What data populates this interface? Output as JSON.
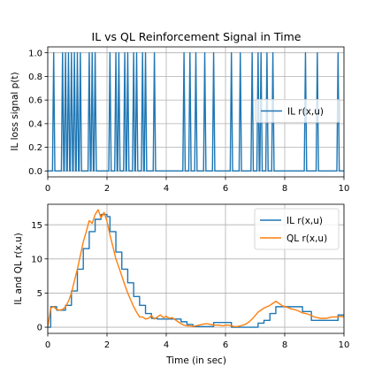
{
  "chart_data": [
    {
      "type": "line",
      "title": "IL vs QL Reinforcement Signal in Time",
      "xlabel": "",
      "ylabel": "IL loss signal p(t)",
      "xlim": [
        0,
        10
      ],
      "ylim": [
        -0.05,
        1.05
      ],
      "x_ticks": [
        0,
        2,
        4,
        6,
        8,
        10
      ],
      "y_ticks": [
        0.0,
        0.2,
        0.4,
        0.6,
        0.8,
        1.0
      ],
      "x_tick_labels": [
        "0",
        "2",
        "4",
        "6",
        "8",
        "10"
      ],
      "y_tick_labels": [
        "0.0",
        "0.2",
        "0.4",
        "0.6",
        "0.8",
        "1.0"
      ],
      "grid": true,
      "legend_position": "center-right",
      "spike_width": 0.08,
      "series": [
        {
          "name": "IL r(x,u)",
          "color": "#1f77b4",
          "spike_times": [
            0.2,
            0.5,
            0.6,
            0.7,
            0.8,
            0.9,
            1.0,
            1.1,
            1.4,
            1.5,
            1.6,
            2.1,
            2.3,
            2.4,
            2.6,
            2.7,
            2.9,
            3.0,
            3.2,
            3.3,
            3.6,
            4.6,
            4.8,
            5.0,
            5.3,
            5.6,
            6.2,
            6.5,
            6.9,
            7.1,
            7.2,
            7.4,
            7.6,
            8.7,
            9.1,
            9.8
          ]
        }
      ]
    },
    {
      "type": "line",
      "title": "",
      "xlabel": "Time (in sec)",
      "ylabel": "IL and QL r(x,u)",
      "xlim": [
        0,
        10
      ],
      "ylim": [
        -0.9,
        18
      ],
      "x_ticks": [
        0,
        2,
        4,
        6,
        8,
        10
      ],
      "y_ticks": [
        0,
        5,
        10,
        15
      ],
      "x_tick_labels": [
        "0",
        "2",
        "4",
        "6",
        "8",
        "10"
      ],
      "y_tick_labels": [
        "0",
        "5",
        "10",
        "15"
      ],
      "grid": true,
      "legend_position": "top-right",
      "series": [
        {
          "name": "IL r(x,u)",
          "color": "#1f77b4",
          "step": true,
          "x": [
            0,
            0.1,
            0.2,
            0.3,
            0.4,
            0.5,
            0.6,
            0.7,
            0.8,
            0.9,
            1.0,
            1.1,
            1.2,
            1.3,
            1.4,
            1.5,
            1.6,
            1.7,
            1.8,
            1.9,
            2.0,
            2.1,
            2.2,
            2.3,
            2.4,
            2.5,
            2.6,
            2.7,
            2.8,
            2.9,
            3.0,
            3.1,
            3.2,
            3.3,
            3.4,
            3.5,
            3.6,
            3.7,
            3.8,
            3.9,
            4.0,
            4.1,
            4.2,
            4.3,
            4.4,
            4.5,
            4.6,
            4.7,
            4.8,
            4.9,
            5.0,
            5.1,
            5.2,
            5.3,
            5.4,
            5.5,
            5.6,
            5.7,
            5.8,
            5.9,
            6.0,
            6.1,
            6.2,
            6.3,
            6.4,
            6.5,
            6.6,
            6.7,
            6.8,
            6.9,
            7.0,
            7.1,
            7.2,
            7.3,
            7.4,
            7.5,
            7.6,
            7.7,
            7.8,
            7.9,
            8.0,
            8.1,
            8.2,
            8.3,
            8.4,
            8.5,
            8.6,
            8.7,
            8.8,
            8.9,
            9.0,
            9.1,
            9.2,
            9.3,
            9.4,
            9.5,
            9.6,
            9.7,
            9.8,
            9.9,
            10.0
          ],
          "values": [
            0.0,
            3.0,
            3.0,
            2.5,
            2.5,
            2.5,
            3.2,
            3.2,
            5.3,
            5.3,
            8.5,
            8.5,
            11.5,
            11.5,
            14.0,
            14.0,
            15.8,
            15.8,
            16.5,
            16.5,
            16.2,
            14.0,
            14.0,
            11.0,
            11.0,
            8.5,
            8.5,
            6.5,
            6.5,
            4.5,
            4.5,
            3.2,
            3.2,
            2.0,
            2.0,
            1.3,
            1.3,
            1.2,
            1.2,
            1.2,
            1.2,
            1.2,
            1.2,
            1.2,
            1.2,
            0.8,
            0.8,
            0.4,
            0.4,
            0.1,
            0.1,
            0.1,
            0.1,
            0.1,
            0.1,
            0.1,
            0.7,
            0.7,
            0.7,
            0.7,
            0.7,
            0.7,
            0.0,
            0.0,
            0.0,
            0.0,
            0.0,
            0.0,
            0.0,
            0.0,
            0.0,
            0.6,
            0.6,
            1.0,
            1.0,
            2.0,
            2.0,
            3.0,
            3.0,
            3.0,
            3.0,
            3.0,
            3.0,
            3.0,
            3.0,
            3.0,
            2.3,
            2.3,
            2.3,
            1.0,
            1.0,
            1.0,
            1.0,
            1.0,
            1.0,
            1.0,
            1.0,
            1.0,
            1.8,
            1.8,
            1.8
          ]
        },
        {
          "name": "QL r(x,u)",
          "color": "#ff7f0e",
          "step": false,
          "x": [
            0,
            0.1,
            0.2,
            0.3,
            0.4,
            0.5,
            0.6,
            0.7,
            0.8,
            0.9,
            1.0,
            1.1,
            1.2,
            1.3,
            1.4,
            1.5,
            1.6,
            1.7,
            1.8,
            1.9,
            2.0,
            2.1,
            2.2,
            2.3,
            2.4,
            2.5,
            2.6,
            2.7,
            2.8,
            2.9,
            3.0,
            3.1,
            3.2,
            3.3,
            3.4,
            3.5,
            3.6,
            3.7,
            3.8,
            3.9,
            4.0,
            4.1,
            4.2,
            4.3,
            4.4,
            4.5,
            4.6,
            4.7,
            4.8,
            4.9,
            5.0,
            5.1,
            5.2,
            5.3,
            5.4,
            5.5,
            5.6,
            5.7,
            5.8,
            5.9,
            6.0,
            6.1,
            6.2,
            6.3,
            6.4,
            6.5,
            6.6,
            6.7,
            6.8,
            6.9,
            7.0,
            7.1,
            7.2,
            7.3,
            7.4,
            7.5,
            7.6,
            7.7,
            7.8,
            7.9,
            8.0,
            8.1,
            8.2,
            8.3,
            8.4,
            8.5,
            8.6,
            8.7,
            8.8,
            8.9,
            9.0,
            9.1,
            9.2,
            9.3,
            9.4,
            9.5,
            9.6,
            9.7,
            9.8,
            9.9,
            10.0
          ],
          "values": [
            0.0,
            2.8,
            3.0,
            2.6,
            2.5,
            2.6,
            3.0,
            3.8,
            5.0,
            6.8,
            8.5,
            10.5,
            12.5,
            14.0,
            15.6,
            15.2,
            16.5,
            17.2,
            16.0,
            16.8,
            15.5,
            13.5,
            11.8,
            10.0,
            8.8,
            7.5,
            6.2,
            5.0,
            4.0,
            3.0,
            2.2,
            1.5,
            1.5,
            1.2,
            1.3,
            1.7,
            1.2,
            1.5,
            1.8,
            1.4,
            1.6,
            1.3,
            1.4,
            1.1,
            0.8,
            0.5,
            0.3,
            0.2,
            0.2,
            0.1,
            0.2,
            0.3,
            0.4,
            0.5,
            0.5,
            0.4,
            0.3,
            0.3,
            0.3,
            0.2,
            0.3,
            0.3,
            0.2,
            0.1,
            0.1,
            0.2,
            0.3,
            0.5,
            0.8,
            1.2,
            1.7,
            2.2,
            2.5,
            2.8,
            3.0,
            3.2,
            3.5,
            3.8,
            3.5,
            3.2,
            3.0,
            2.9,
            2.7,
            2.6,
            2.5,
            2.3,
            2.1,
            2.0,
            1.9,
            1.7,
            1.5,
            1.4,
            1.3,
            1.3,
            1.3,
            1.4,
            1.5,
            1.5,
            1.5,
            1.6,
            1.5
          ]
        }
      ]
    }
  ]
}
